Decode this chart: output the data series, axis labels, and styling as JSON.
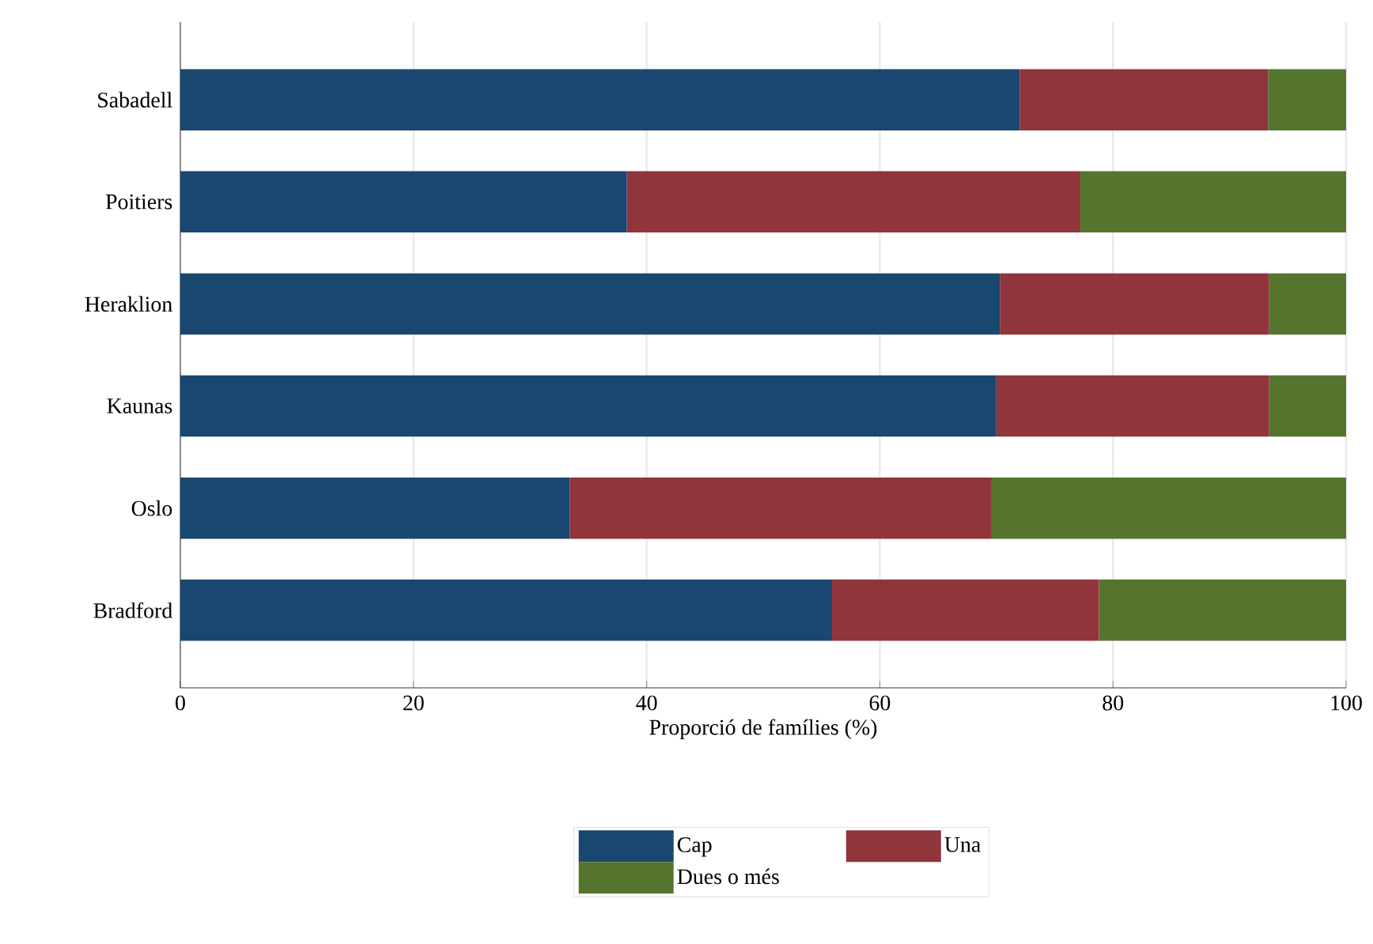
{
  "chart_data": {
    "type": "bar",
    "orientation": "horizontal",
    "stacked": true,
    "categories": [
      "Sabadell",
      "Poitiers",
      "Heraklion",
      "Kaunas",
      "Oslo",
      "Bradford"
    ],
    "series": [
      {
        "name": "Cap",
        "color": "#1a476f",
        "values": [
          72.0,
          38.3,
          70.3,
          70.0,
          33.4,
          55.9
        ]
      },
      {
        "name": "Una",
        "color": "#90353b",
        "values": [
          21.3,
          38.9,
          23.1,
          23.4,
          36.2,
          22.9
        ]
      },
      {
        "name": "Dues o més",
        "color": "#55752f",
        "values": [
          6.7,
          22.8,
          6.6,
          6.6,
          30.4,
          21.2
        ]
      }
    ],
    "xlabel": "Proporció de famílies (%)",
    "xlim": [
      0,
      100
    ],
    "xticks": [
      0,
      20,
      40,
      60,
      80,
      100
    ],
    "grid": "x",
    "legend": "bottom"
  }
}
